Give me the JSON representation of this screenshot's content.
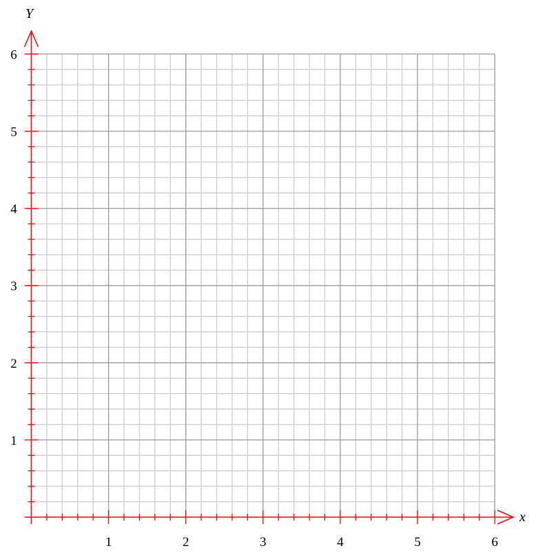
{
  "chart_data": {
    "type": "scatter",
    "title": "",
    "xlabel": "x",
    "ylabel": "Y",
    "xlim": [
      0,
      6
    ],
    "ylim": [
      0,
      6
    ],
    "x_ticks": [
      "1",
      "2",
      "3",
      "4",
      "5",
      "6"
    ],
    "y_ticks": [
      "1",
      "2",
      "3",
      "4",
      "5",
      "6"
    ],
    "major_step": 1,
    "minor_step": 0.2,
    "grid": true,
    "series": [],
    "colors": {
      "axis": "#ff0000",
      "major_grid": "#999999",
      "minor_grid": "#cccccc"
    }
  }
}
